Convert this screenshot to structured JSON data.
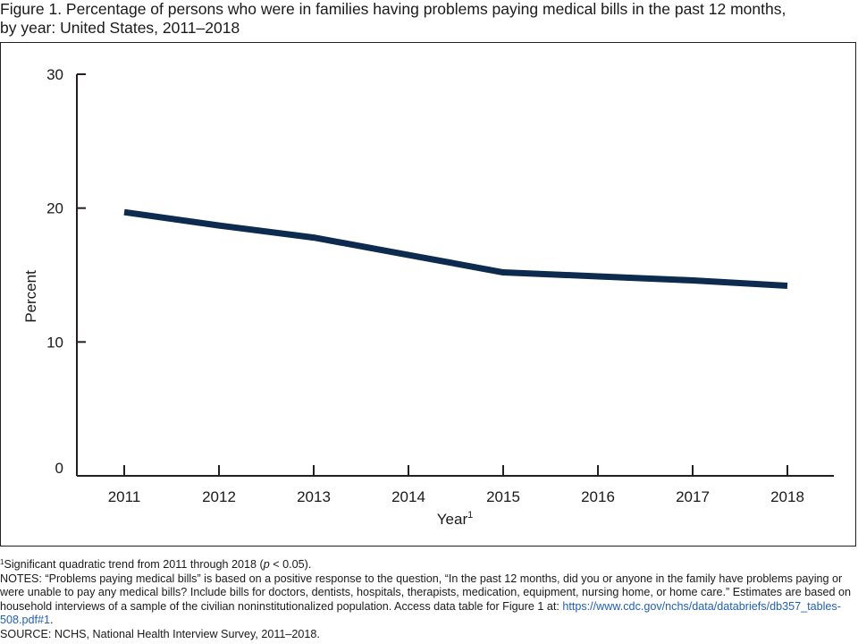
{
  "figure": {
    "title_line1": "Figure 1. Percentage of persons who were in families having problems paying medical bills in the past 12 months,",
    "title_line2": "by year: United States, 2011–2018"
  },
  "chart_data": {
    "type": "line",
    "x": [
      "2011",
      "2012",
      "2013",
      "2014",
      "2015",
      "2016",
      "2017",
      "2018"
    ],
    "series": [
      {
        "values": [
          19.7,
          18.7,
          17.8,
          16.5,
          15.2,
          14.9,
          14.6,
          14.2
        ],
        "color": "#0d2b4e"
      }
    ],
    "ylim": [
      0,
      30
    ],
    "yticks": [
      0,
      10,
      20,
      30
    ],
    "xlabel": "Year",
    "xlabel_sup": "1",
    "ylabel": "Percent",
    "grid": false,
    "legend": "none"
  },
  "footnotes": {
    "fn1_marker": "1",
    "fn1_text_before": "Significant quadratic trend from 2011 through 2018 (",
    "fn1_italic": "p",
    "fn1_text_after": " < 0.05).",
    "notes_text": "NOTES: “Problems paying medical bills” is based on a positive response to the question, “In the past 12 months, did you or anyone in the family have problems paying or were unable to pay any medical bills? Include bills for doctors, dentists, hospitals, therapists, medication, equipment, nursing home, or home care.” Estimates are based on household interviews of a sample of the civilian noninstitutionalized population. Access data table for Figure 1 at: ",
    "notes_link": "https://www.cdc.gov/nchs/data/databriefs/db357_tables-508.pdf#1",
    "notes_end": ".",
    "source": "SOURCE: NCHS, National Health Interview Survey, 2011–2018."
  }
}
